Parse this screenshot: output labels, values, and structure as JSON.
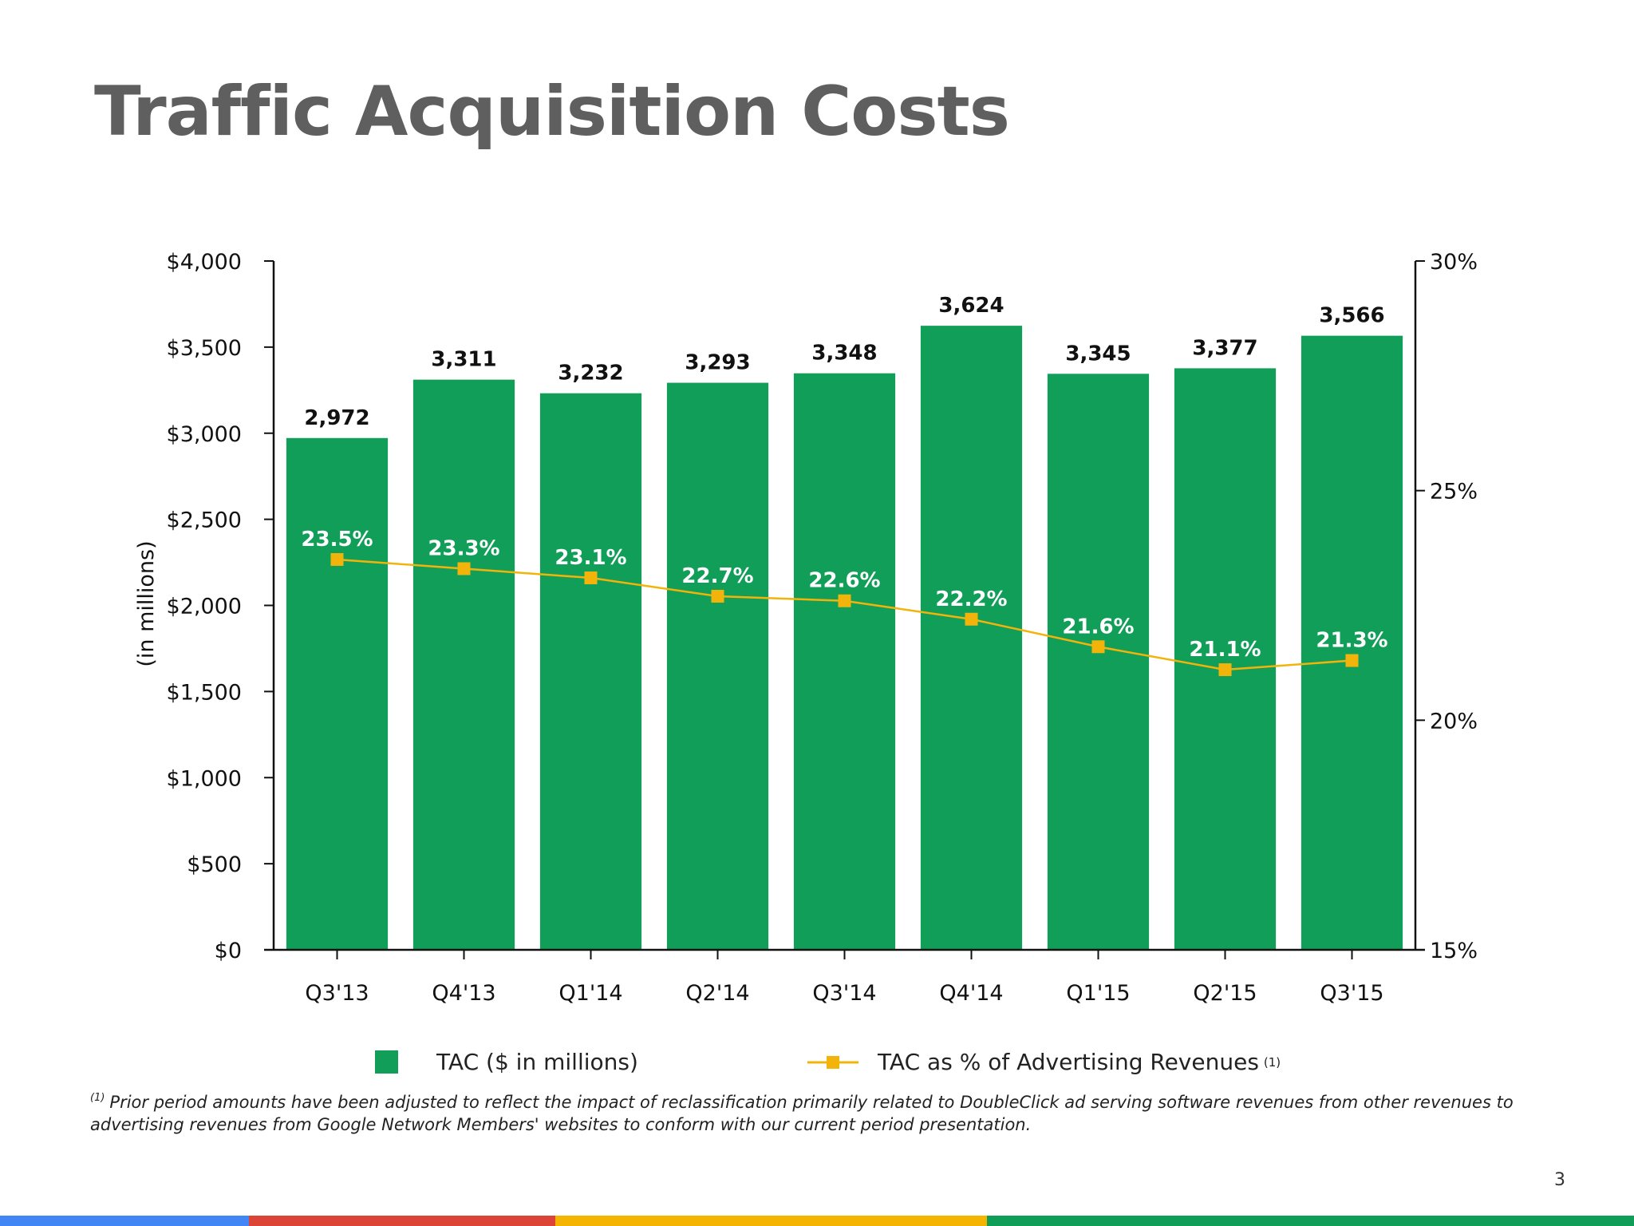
{
  "page": {
    "title": "Traffic Acquisition Costs",
    "page_number": "3",
    "footnote_marker": "(1)",
    "footnote_text": "Prior period amounts have been adjusted to reflect the impact of reclassification primarily related to DoubleClick ad serving software revenues from other revenues to advertising revenues from Google Network Members' websites to conform with our current period presentation."
  },
  "colors": {
    "bar": "#119e58",
    "line": "#f2b40a",
    "title": "#5f5f5f",
    "strip": [
      "#4285f4",
      "#db4437",
      "#f4b400",
      "#0f9d58"
    ]
  },
  "chart_data": {
    "type": "bar",
    "title": "Traffic Acquisition Costs",
    "categories": [
      "Q3'13",
      "Q4'13",
      "Q1'14",
      "Q2'14",
      "Q3'14",
      "Q4'14",
      "Q1'15",
      "Q2'15",
      "Q3'15"
    ],
    "series": [
      {
        "name": "TAC ($ in millions)",
        "type": "bar",
        "axis": "left",
        "values": [
          2972,
          3311,
          3232,
          3293,
          3348,
          3624,
          3345,
          3377,
          3566
        ],
        "labels": [
          "2,972",
          "3,311",
          "3,232",
          "3,293",
          "3,348",
          "3,624",
          "3,345",
          "3,377",
          "3,566"
        ]
      },
      {
        "name": "TAC as % of Advertising Revenues",
        "type": "line",
        "axis": "right",
        "values": [
          23.5,
          23.3,
          23.1,
          22.7,
          22.6,
          22.2,
          21.6,
          21.1,
          21.3
        ],
        "labels": [
          "23.5%",
          "23.3%",
          "23.1%",
          "22.7%",
          "22.6%",
          "22.2%",
          "21.6%",
          "21.1%",
          "21.3%"
        ]
      }
    ],
    "ylabel": "(in millions)",
    "ylim": [
      0,
      4000
    ],
    "yticks": [
      0,
      500,
      1000,
      1500,
      2000,
      2500,
      3000,
      3500,
      4000
    ],
    "ytick_labels": [
      "$0",
      "$500",
      "$1,000",
      "$1,500",
      "$2,000",
      "$2,500",
      "$3,000",
      "$3,500",
      "$4,000"
    ],
    "y2lim": [
      15,
      30
    ],
    "y2ticks": [
      15,
      20,
      25,
      30
    ],
    "y2tick_labels": [
      "15%",
      "20%",
      "25%",
      "30%"
    ],
    "grid": false,
    "legend": [
      {
        "label": "TAC ($ in millions)",
        "marker": ""
      },
      {
        "label": "TAC as % of Advertising Revenues",
        "marker": "(1)"
      }
    ],
    "legend_position": "bottom"
  }
}
